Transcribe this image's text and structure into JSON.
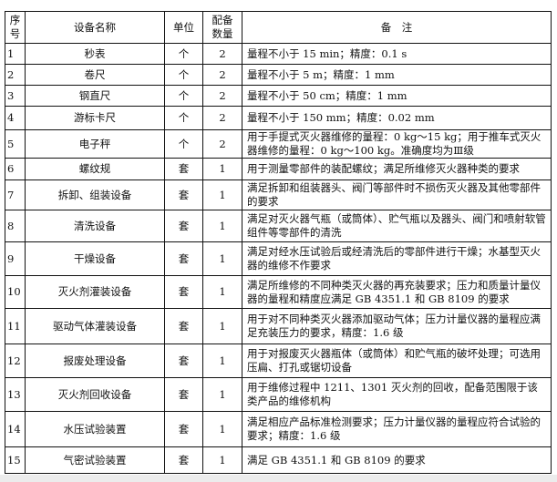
{
  "headers": {
    "index": "序号",
    "name": "设备名称",
    "unit": "单位",
    "qty": "配备数量",
    "note": "备　注"
  },
  "rows": [
    {
      "index": "1",
      "name": "秒表",
      "unit": "个",
      "qty": "2",
      "note": "量程不小于 15 min；精度：0.1 s"
    },
    {
      "index": "2",
      "name": "卷尺",
      "unit": "个",
      "qty": "2",
      "note": "量程不小于 5 m；精度：1 mm"
    },
    {
      "index": "3",
      "name": "钢直尺",
      "unit": "个",
      "qty": "2",
      "note": "量程不小于 50 cm；精度：1 mm"
    },
    {
      "index": "4",
      "name": "游标卡尺",
      "unit": "个",
      "qty": "2",
      "note": "量程不小于 150 mm；精度：0.02 mm"
    },
    {
      "index": "5",
      "name": "电子秤",
      "unit": "个",
      "qty": "2",
      "note": "用于手提式灭火器维修的量程：0 kg～15 kg；用于推车式灭火器维修的量程：0 kg～100 kg。准确度均为Ⅲ级"
    },
    {
      "index": "6",
      "name": "螺纹规",
      "unit": "套",
      "qty": "1",
      "note": "用于测量零部件的装配螺纹；满足所维修灭火器种类的要求"
    },
    {
      "index": "7",
      "name": "拆卸、组装设备",
      "unit": "套",
      "qty": "1",
      "note": "满足拆卸和组装器头、阀门等部件时不损伤灭火器及其他零部件的要求"
    },
    {
      "index": "8",
      "name": "清洗设备",
      "unit": "套",
      "qty": "1",
      "note": "满足对灭火器气瓶（或筒体）、贮气瓶以及器头、阀门和喷射软管组件等零部件的清洗"
    },
    {
      "index": "9",
      "name": "干燥设备",
      "unit": "套",
      "qty": "1",
      "note": "满足对经水压试验后或经清洗后的零部件进行干燥；水基型灭火器的维修不作要求"
    },
    {
      "index": "10",
      "name": "灭火剂灌装设备",
      "unit": "套",
      "qty": "1",
      "note": "满足所维修的不同种类灭火器的再充装要求；压力和质量计量仪器的量程和精度应满足 GB 4351.1 和 GB 8109 的要求"
    },
    {
      "index": "11",
      "name": "驱动气体灌装设备",
      "unit": "套",
      "qty": "1",
      "note": "用于对不同种类灭火器添加驱动气体；压力计量仪器的量程应满足充装压力的要求，精度：1.6 级"
    },
    {
      "index": "12",
      "name": "报废处理设备",
      "unit": "套",
      "qty": "1",
      "note": "用于对报废灭火器瓶体（或筒体）和贮气瓶的破坏处理；可选用压扁、打孔或锯切设备"
    },
    {
      "index": "13",
      "name": "灭火剂回收设备",
      "unit": "套",
      "qty": "1",
      "note": "用于维修过程中 1211、1301 灭火剂的回收，配备范围限于该类产品的维修机构"
    },
    {
      "index": "14",
      "name": "水压试验装置",
      "unit": "套",
      "qty": "1",
      "note": "满足相应产品标准检测要求；压力计量仪器的量程应符合试验的要求；精度：1.6 级"
    },
    {
      "index": "15",
      "name": "气密试验装置",
      "unit": "套",
      "qty": "1",
      "note": "满足 GB 4351.1 和 GB 8109 的要求"
    }
  ]
}
